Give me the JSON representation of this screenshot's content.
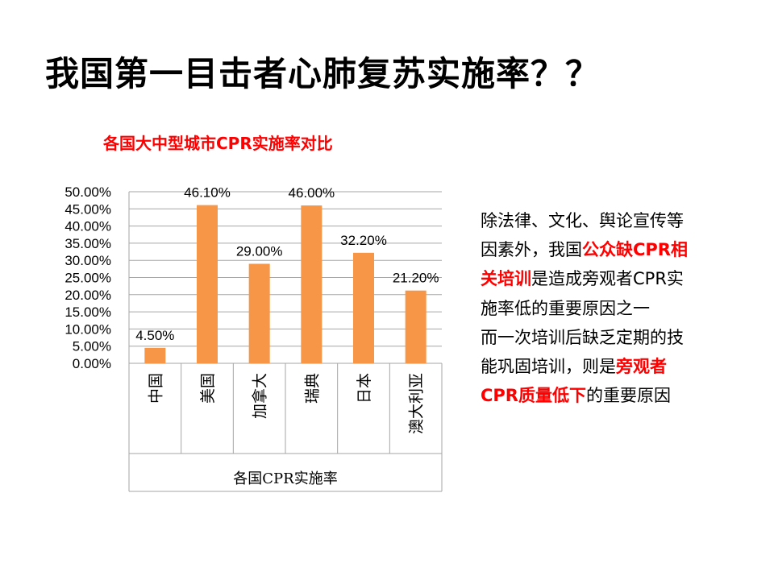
{
  "slide": {
    "title": "我国第一目击者心肺复苏实施率？？"
  },
  "chart_data": {
    "type": "bar",
    "title": "各国大中型城市CPR实施率对比",
    "xlabel": "各国CPR实施率",
    "ylabel": "",
    "categories": [
      "中国",
      "美国",
      "加拿大",
      "瑞典",
      "日本",
      "澳大利亚"
    ],
    "values": [
      4.5,
      46.1,
      29.0,
      46.0,
      32.2,
      21.2
    ],
    "data_labels": [
      "4.50%",
      "46.10%",
      "29.00%",
      "46.00%",
      "32.20%",
      "21.20%"
    ],
    "ylim": [
      0,
      50
    ],
    "yticks": [
      0,
      5,
      10,
      15,
      20,
      25,
      30,
      35,
      40,
      45,
      50
    ],
    "ytick_labels": [
      "0.00%",
      "5.00%",
      "10.00%",
      "15.00%",
      "20.00%",
      "25.00%",
      "30.00%",
      "35.00%",
      "40.00%",
      "45.00%",
      "50.00%"
    ],
    "grid": true,
    "legend": "none",
    "bar_color": "#f79646",
    "grid_color": "#a6a6a6"
  },
  "side_text": {
    "lines": [
      [
        {
          "t": "除法律、文化、舆论宣传等",
          "hl": false
        }
      ],
      [
        {
          "t": "因素外，我国",
          "hl": false
        },
        {
          "t": "公众缺CPR相",
          "hl": true
        }
      ],
      [
        {
          "t": "关培训",
          "hl": true
        },
        {
          "t": "是造成旁观者CPR实",
          "hl": false
        }
      ],
      [
        {
          "t": "施率低的重要原因之一",
          "hl": false
        }
      ],
      [
        {
          "t": "而一次培训后缺乏定期的技",
          "hl": false
        }
      ],
      [
        {
          "t": "能巩固培训，则是",
          "hl": false
        },
        {
          "t": "旁观者",
          "hl": true
        }
      ],
      [
        {
          "t": "CPR质量低下",
          "hl": true
        },
        {
          "t": "的重要原因",
          "hl": false
        }
      ]
    ],
    "highlight_color": "#ff0000"
  }
}
